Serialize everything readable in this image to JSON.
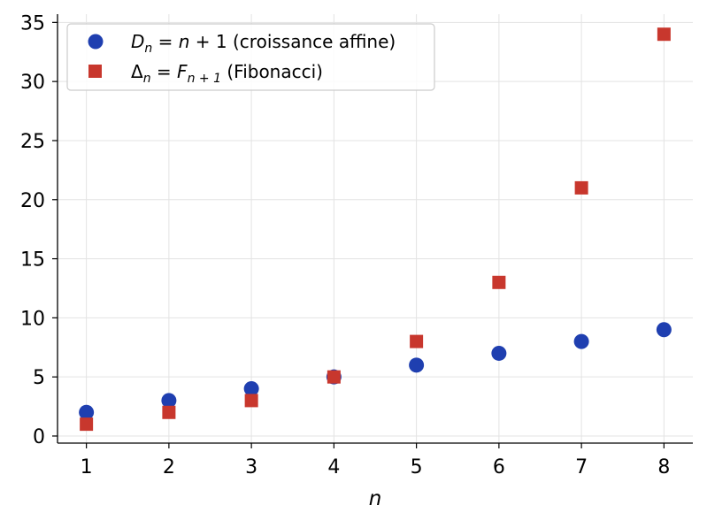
{
  "chart_data": {
    "type": "scatter",
    "xlabel": "n",
    "ylabel": "",
    "title": "",
    "xlim": [
      0.65,
      8.35
    ],
    "ylim": [
      -0.6,
      35.7
    ],
    "xticks": [
      1,
      2,
      3,
      4,
      5,
      6,
      7,
      8
    ],
    "yticks": [
      0,
      5,
      10,
      15,
      20,
      25,
      30,
      35
    ],
    "grid": true,
    "legend_position": "top-left",
    "series": [
      {
        "name": "D_n = n + 1 (croissance affine)",
        "marker": "circle",
        "color": "#1f3fb0",
        "x": [
          1,
          2,
          3,
          4,
          5,
          6,
          7,
          8
        ],
        "y": [
          2,
          3,
          4,
          5,
          6,
          7,
          8,
          9
        ]
      },
      {
        "name": "Δ_n = F_{n+1} (Fibonacci)",
        "marker": "square",
        "color": "#c8372d",
        "x": [
          1,
          2,
          3,
          4,
          5,
          6,
          7,
          8
        ],
        "y": [
          1,
          2,
          3,
          5,
          8,
          13,
          21,
          34
        ]
      }
    ]
  },
  "legend": {
    "series1": {
      "symbol": "D",
      "subscript": "n",
      "equals": " = ",
      "rhs_var": "n",
      "rhs_rest": " + 1 (croissance affine)"
    },
    "series2": {
      "symbol": "Δ",
      "subscript": "n",
      "equals": " = ",
      "rhs_var": "F",
      "rhs_sub": "n + 1",
      "rhs_rest": " (Fibonacci)"
    }
  }
}
